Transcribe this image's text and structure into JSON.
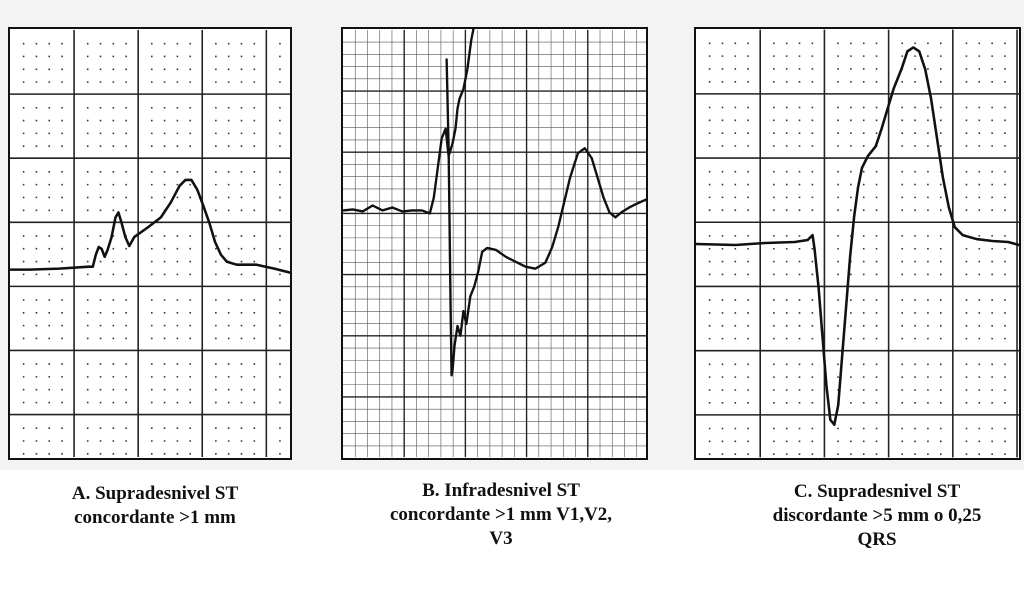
{
  "panels": [
    {
      "id": "A",
      "style": "dotted",
      "caption_lines": [
        "A.  Supradesnivel ST",
        "concordante >1 mm"
      ]
    },
    {
      "id": "B",
      "style": "fine",
      "caption_lines": [
        "B.  Infradesnivel ST",
        "concordante >1 mm V1,V2,",
        "V3"
      ]
    },
    {
      "id": "C",
      "style": "dotted",
      "caption_lines": [
        "C.  Supradesnivel ST",
        "discordante >5 mm o 0,25",
        "QRS"
      ]
    }
  ],
  "colors": {
    "trace": "#111111",
    "grid_major": "#222222",
    "grid_minor": "#555555",
    "dots": "#333333",
    "background": "#f3f3f3"
  }
}
